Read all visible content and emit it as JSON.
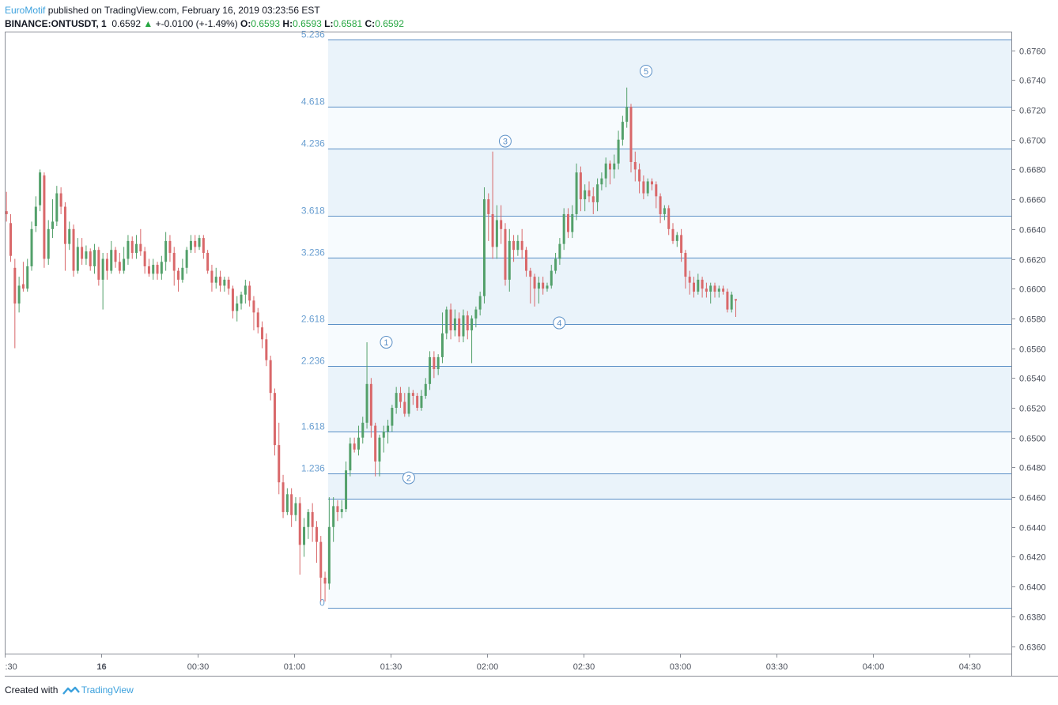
{
  "header": {
    "author": "EuroMotif",
    "published": "published on TradingView.com, February 16, 2019 03:23:56 EST",
    "symbol": "BINANCE:ONTUSDT, 1",
    "price": "0.6592",
    "change": "+-0.0100 (+-1.49%)",
    "o_label": "O:",
    "o_value": "0.6593",
    "h_label": "H:",
    "h_value": "0.6593",
    "l_label": "L:",
    "l_value": "0.6581",
    "c_label": "C:",
    "c_value": "0.6592"
  },
  "footer": {
    "created_with": "Created with",
    "brand": "TradingView"
  },
  "colors": {
    "up": "#53a06a",
    "down": "#d9686a",
    "fib": "#5a8fc6",
    "fib_fill": "#eef5fb",
    "label": "#6a9fd1"
  },
  "chart_data": {
    "type": "candlestick",
    "y_axis": {
      "min": 0.6355,
      "max": 0.6772,
      "ticks": [
        "0.6760",
        "0.6740",
        "0.6720",
        "0.6700",
        "0.6680",
        "0.6660",
        "0.6640",
        "0.6620",
        "0.6600",
        "0.6580",
        "0.6560",
        "0.6540",
        "0.6520",
        "0.6500",
        "0.6480",
        "0.6460",
        "0.6440",
        "0.6420",
        "0.6400",
        "0.6380",
        "0.6360"
      ]
    },
    "x_axis": {
      "labels": [
        {
          "text": ":30",
          "t": 0
        },
        {
          "text": "16",
          "t": 30
        },
        {
          "text": "00:30",
          "t": 60
        },
        {
          "text": "01:00",
          "t": 90
        },
        {
          "text": "01:30",
          "t": 120
        },
        {
          "text": "02:00",
          "t": 150
        },
        {
          "text": "02:30",
          "t": 180
        },
        {
          "text": "03:00",
          "t": 210
        },
        {
          "text": "03:30",
          "t": 240
        },
        {
          "text": "04:00",
          "t": 270
        },
        {
          "text": "04:30",
          "t": 300
        }
      ],
      "t_min": 0.2,
      "t_max": 313
    },
    "fib_levels": [
      {
        "label": "0",
        "price": 0.6386
      },
      {
        "label": "",
        "price": 0.6459
      },
      {
        "label": "1.236",
        "price": 0.6476
      },
      {
        "label": "1.618",
        "price": 0.6504
      },
      {
        "label": "2.236",
        "price": 0.6548
      },
      {
        "label": "2.618",
        "price": 0.6576
      },
      {
        "label": "3.236",
        "price": 0.6621
      },
      {
        "label": "3.618",
        "price": 0.6649
      },
      {
        "label": "4.236",
        "price": 0.6694
      },
      {
        "label": "4.618",
        "price": 0.6722
      },
      {
        "label": "5.236",
        "price": 0.6767
      }
    ],
    "fib_t_start": 100.5,
    "waves": [
      {
        "label": "1",
        "t": 118.6,
        "price": 0.6564
      },
      {
        "label": "2",
        "t": 125.6,
        "price": 0.6473
      },
      {
        "label": "3",
        "t": 155.6,
        "price": 0.6699
      },
      {
        "label": "4",
        "t": 172.4,
        "price": 0.6577
      },
      {
        "label": "5",
        "t": 199.4,
        "price": 0.6746
      }
    ],
    "candles": [
      [
        0.6652,
        0.665,
        0.6665,
        0.6645
      ],
      [
        0.6644,
        0.6622,
        0.665,
        0.6618
      ],
      [
        0.6614,
        0.659,
        0.662,
        0.656
      ],
      [
        0.659,
        0.6602,
        0.6608,
        0.6584
      ],
      [
        0.6603,
        0.66,
        0.6618,
        0.6598
      ],
      [
        0.66,
        0.6615,
        0.662,
        0.6598
      ],
      [
        0.6615,
        0.664,
        0.6645,
        0.6612
      ],
      [
        0.6642,
        0.6655,
        0.6662,
        0.6638
      ],
      [
        0.6656,
        0.6678,
        0.668,
        0.6652
      ],
      [
        0.6676,
        0.662,
        0.6678,
        0.6614
      ],
      [
        0.662,
        0.664,
        0.6646,
        0.6616
      ],
      [
        0.664,
        0.6645,
        0.666,
        0.6634
      ],
      [
        0.6645,
        0.6664,
        0.6669,
        0.6642
      ],
      [
        0.6664,
        0.6655,
        0.6668,
        0.665
      ],
      [
        0.6655,
        0.663,
        0.6658,
        0.6612
      ],
      [
        0.663,
        0.664,
        0.6645,
        0.6626
      ],
      [
        0.664,
        0.6612,
        0.6643,
        0.6608
      ],
      [
        0.6612,
        0.6628,
        0.6634,
        0.661
      ],
      [
        0.6628,
        0.662,
        0.6634,
        0.6616
      ],
      [
        0.662,
        0.6625,
        0.6629,
        0.6616
      ],
      [
        0.6625,
        0.6615,
        0.6627,
        0.6612
      ],
      [
        0.6615,
        0.6626,
        0.663,
        0.661
      ],
      [
        0.6626,
        0.6606,
        0.6628,
        0.6602
      ],
      [
        0.6606,
        0.662,
        0.6624,
        0.6586
      ],
      [
        0.662,
        0.6612,
        0.6624,
        0.6606
      ],
      [
        0.6612,
        0.6626,
        0.6632,
        0.661
      ],
      [
        0.6626,
        0.6618,
        0.6628,
        0.6614
      ],
      [
        0.6618,
        0.6612,
        0.6624,
        0.661
      ],
      [
        0.6612,
        0.662,
        0.6628,
        0.661
      ],
      [
        0.662,
        0.6632,
        0.6636,
        0.6616
      ],
      [
        0.6632,
        0.6624,
        0.6635,
        0.662
      ],
      [
        0.6624,
        0.663,
        0.6636,
        0.662
      ],
      [
        0.663,
        0.6625,
        0.664,
        0.6622
      ],
      [
        0.6625,
        0.6615,
        0.6628,
        0.661
      ],
      [
        0.6615,
        0.661,
        0.662,
        0.6608
      ],
      [
        0.661,
        0.6616,
        0.662,
        0.6606
      ],
      [
        0.6616,
        0.661,
        0.6618,
        0.6606
      ],
      [
        0.661,
        0.6618,
        0.6622,
        0.6606
      ],
      [
        0.6618,
        0.6632,
        0.6638,
        0.6612
      ],
      [
        0.6632,
        0.6624,
        0.6636,
        0.6618
      ],
      [
        0.6624,
        0.6612,
        0.6628,
        0.6602
      ],
      [
        0.6612,
        0.6606,
        0.6614,
        0.6598
      ],
      [
        0.6606,
        0.6614,
        0.662,
        0.6604
      ],
      [
        0.6614,
        0.6626,
        0.6628,
        0.661
      ],
      [
        0.6626,
        0.6632,
        0.6636,
        0.6624
      ],
      [
        0.6632,
        0.6628,
        0.6636,
        0.6624
      ],
      [
        0.6628,
        0.6634,
        0.6636,
        0.6626
      ],
      [
        0.6634,
        0.6624,
        0.6636,
        0.662
      ],
      [
        0.6624,
        0.6612,
        0.6626,
        0.661
      ],
      [
        0.6612,
        0.6604,
        0.6616,
        0.6598
      ],
      [
        0.6604,
        0.6608,
        0.6614,
        0.66
      ],
      [
        0.6608,
        0.6602,
        0.6612,
        0.6598
      ],
      [
        0.6602,
        0.6606,
        0.6608,
        0.6598
      ],
      [
        0.6606,
        0.66,
        0.6608,
        0.6596
      ],
      [
        0.66,
        0.6585,
        0.6602,
        0.658
      ],
      [
        0.6585,
        0.659,
        0.6595,
        0.6578
      ],
      [
        0.659,
        0.6596,
        0.6598,
        0.6586
      ],
      [
        0.6596,
        0.6602,
        0.6606,
        0.659
      ],
      [
        0.6602,
        0.6592,
        0.6605,
        0.6588
      ],
      [
        0.6592,
        0.6584,
        0.6595,
        0.6572
      ],
      [
        0.6584,
        0.6574,
        0.6587,
        0.657
      ],
      [
        0.6574,
        0.6566,
        0.6578,
        0.656
      ],
      [
        0.6566,
        0.6552,
        0.657,
        0.6548
      ],
      [
        0.6552,
        0.653,
        0.6555,
        0.6525
      ],
      [
        0.653,
        0.6495,
        0.6533,
        0.6488
      ],
      [
        0.6495,
        0.647,
        0.651,
        0.6462
      ],
      [
        0.647,
        0.645,
        0.6475,
        0.6446
      ],
      [
        0.645,
        0.6462,
        0.6466,
        0.6448
      ],
      [
        0.6462,
        0.6448,
        0.6466,
        0.644
      ],
      [
        0.6448,
        0.6456,
        0.646,
        0.6444
      ],
      [
        0.6456,
        0.6428,
        0.646,
        0.6408
      ],
      [
        0.6428,
        0.644,
        0.6446,
        0.642
      ],
      [
        0.644,
        0.645,
        0.6452,
        0.6432
      ],
      [
        0.645,
        0.644,
        0.6456,
        0.643
      ],
      [
        0.644,
        0.643,
        0.6444,
        0.6416
      ],
      [
        0.643,
        0.6406,
        0.6434,
        0.639
      ],
      [
        0.6406,
        0.6402,
        0.641,
        0.639
      ],
      [
        0.6402,
        0.644,
        0.646,
        0.6398
      ],
      [
        0.644,
        0.6454,
        0.646,
        0.643
      ],
      [
        0.6454,
        0.645,
        0.6458,
        0.6444
      ],
      [
        0.645,
        0.6452,
        0.6458,
        0.6446
      ],
      [
        0.6452,
        0.6478,
        0.6484,
        0.645
      ],
      [
        0.6478,
        0.6496,
        0.65,
        0.6474
      ],
      [
        0.6496,
        0.6492,
        0.65,
        0.649
      ],
      [
        0.6492,
        0.65,
        0.6508,
        0.6488
      ],
      [
        0.65,
        0.651,
        0.6514,
        0.6496
      ],
      [
        0.651,
        0.6536,
        0.6564,
        0.6506
      ],
      [
        0.6536,
        0.6508,
        0.654,
        0.65
      ],
      [
        0.6508,
        0.6484,
        0.651,
        0.6474
      ],
      [
        0.6484,
        0.65,
        0.6502,
        0.6474
      ],
      [
        0.65,
        0.6504,
        0.6508,
        0.649
      ],
      [
        0.6504,
        0.6508,
        0.6512,
        0.6496
      ],
      [
        0.6508,
        0.652,
        0.6522,
        0.6504
      ],
      [
        0.652,
        0.653,
        0.6534,
        0.6516
      ],
      [
        0.653,
        0.6524,
        0.6534,
        0.652
      ],
      [
        0.6524,
        0.6516,
        0.653,
        0.6514
      ],
      [
        0.6516,
        0.653,
        0.6534,
        0.6514
      ],
      [
        0.653,
        0.6528,
        0.6532,
        0.6522
      ],
      [
        0.6528,
        0.652,
        0.653,
        0.6518
      ],
      [
        0.652,
        0.6528,
        0.6532,
        0.6518
      ],
      [
        0.6528,
        0.6536,
        0.654,
        0.6526
      ],
      [
        0.6536,
        0.6554,
        0.6558,
        0.6532
      ],
      [
        0.6554,
        0.6546,
        0.6558,
        0.654
      ],
      [
        0.6546,
        0.6554,
        0.6556,
        0.6542
      ],
      [
        0.6554,
        0.657,
        0.6584,
        0.655
      ],
      [
        0.657,
        0.6586,
        0.6588,
        0.6566
      ],
      [
        0.6586,
        0.6572,
        0.659,
        0.6566
      ],
      [
        0.6572,
        0.658,
        0.6586,
        0.6568
      ],
      [
        0.658,
        0.6568,
        0.6584,
        0.6564
      ],
      [
        0.6568,
        0.6582,
        0.6586,
        0.6564
      ],
      [
        0.6582,
        0.6572,
        0.6585,
        0.6566
      ],
      [
        0.6572,
        0.658,
        0.6582,
        0.655
      ],
      [
        0.658,
        0.6586,
        0.6588,
        0.6574
      ],
      [
        0.6586,
        0.6595,
        0.6598,
        0.6582
      ],
      [
        0.6595,
        0.666,
        0.6668,
        0.659
      ],
      [
        0.666,
        0.665,
        0.6664,
        0.6632
      ],
      [
        0.665,
        0.6628,
        0.6692,
        0.662
      ],
      [
        0.6628,
        0.6646,
        0.6656,
        0.662
      ],
      [
        0.6646,
        0.664,
        0.6656,
        0.663
      ],
      [
        0.664,
        0.6606,
        0.6644,
        0.6602
      ],
      [
        0.6606,
        0.6632,
        0.664,
        0.6598
      ],
      [
        0.6632,
        0.6626,
        0.6636,
        0.6618
      ],
      [
        0.6626,
        0.6632,
        0.6636,
        0.6622
      ],
      [
        0.6632,
        0.6626,
        0.664,
        0.662
      ],
      [
        0.6626,
        0.6612,
        0.6628,
        0.6608
      ],
      [
        0.6612,
        0.6608,
        0.6614,
        0.659
      ],
      [
        0.6608,
        0.66,
        0.661,
        0.6588
      ],
      [
        0.66,
        0.6604,
        0.6608,
        0.659
      ],
      [
        0.6604,
        0.66,
        0.6608,
        0.6596
      ],
      [
        0.66,
        0.6602,
        0.6604,
        0.6598
      ],
      [
        0.6602,
        0.6612,
        0.6616,
        0.66
      ],
      [
        0.6612,
        0.662,
        0.6624,
        0.661
      ],
      [
        0.662,
        0.663,
        0.6634,
        0.6616
      ],
      [
        0.663,
        0.665,
        0.6654,
        0.6626
      ],
      [
        0.665,
        0.6638,
        0.6654,
        0.6634
      ],
      [
        0.6638,
        0.665,
        0.6656,
        0.6634
      ],
      [
        0.665,
        0.6678,
        0.6684,
        0.6646
      ],
      [
        0.6678,
        0.666,
        0.6682,
        0.6652
      ],
      [
        0.666,
        0.6666,
        0.667,
        0.6652
      ],
      [
        0.6666,
        0.6662,
        0.6672,
        0.6658
      ],
      [
        0.6662,
        0.6658,
        0.6668,
        0.665
      ],
      [
        0.6658,
        0.667,
        0.6674,
        0.6652
      ],
      [
        0.667,
        0.6674,
        0.6678,
        0.6666
      ],
      [
        0.6674,
        0.6684,
        0.6688,
        0.6668
      ],
      [
        0.6684,
        0.668,
        0.6686,
        0.667
      ],
      [
        0.668,
        0.6684,
        0.669,
        0.6674
      ],
      [
        0.6684,
        0.67,
        0.6706,
        0.668
      ],
      [
        0.67,
        0.6712,
        0.6716,
        0.6696
      ],
      [
        0.6712,
        0.6722,
        0.6735,
        0.6708
      ],
      [
        0.6722,
        0.6685,
        0.6724,
        0.6678
      ],
      [
        0.6685,
        0.668,
        0.6692,
        0.6672
      ],
      [
        0.668,
        0.6672,
        0.6684,
        0.6664
      ],
      [
        0.6672,
        0.6664,
        0.6676,
        0.666
      ],
      [
        0.6664,
        0.6672,
        0.6674,
        0.6662
      ],
      [
        0.6672,
        0.667,
        0.6674,
        0.6666
      ],
      [
        0.667,
        0.6662,
        0.6672,
        0.6654
      ],
      [
        0.6662,
        0.665,
        0.6664,
        0.6644
      ],
      [
        0.665,
        0.6654,
        0.6656,
        0.6646
      ],
      [
        0.6654,
        0.664,
        0.6656,
        0.6636
      ],
      [
        0.664,
        0.6632,
        0.6644,
        0.663
      ],
      [
        0.6632,
        0.6636,
        0.6638,
        0.6628
      ],
      [
        0.6636,
        0.6624,
        0.664,
        0.6618
      ],
      [
        0.6624,
        0.6608,
        0.6626,
        0.66
      ],
      [
        0.6608,
        0.6604,
        0.6612,
        0.6596
      ],
      [
        0.6604,
        0.6598,
        0.6608,
        0.6594
      ],
      [
        0.6598,
        0.6606,
        0.661,
        0.6596
      ],
      [
        0.6606,
        0.66,
        0.6608,
        0.6594
      ],
      [
        0.66,
        0.6598,
        0.6604,
        0.6594
      ],
      [
        0.6598,
        0.6602,
        0.6604,
        0.659
      ],
      [
        0.6602,
        0.6598,
        0.6604,
        0.6594
      ],
      [
        0.6598,
        0.66,
        0.6602,
        0.6594
      ],
      [
        0.66,
        0.6598,
        0.6602,
        0.6596
      ],
      [
        0.6598,
        0.6586,
        0.66,
        0.6584
      ],
      [
        0.6586,
        0.6596,
        0.6598,
        0.6584
      ],
      [
        0.6593,
        0.6592,
        0.6593,
        0.6581
      ]
    ]
  }
}
